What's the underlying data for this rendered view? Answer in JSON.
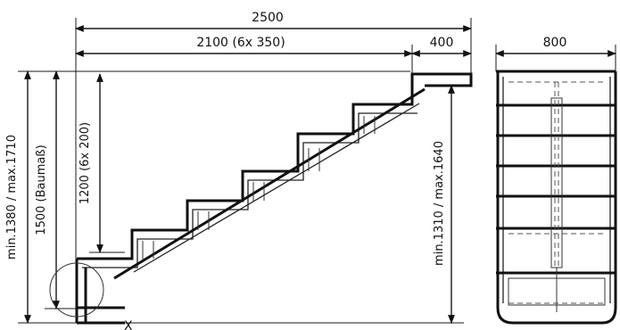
{
  "dimensions": {
    "total_width": "2500",
    "run_width": "2100 (6x 350)",
    "landing_width": "400",
    "stair_width": "800",
    "rise_height": "1200 (6x 200)",
    "ceiling_height": "1500 (Baumaß)",
    "overall_height": "min.1380 / max.1710",
    "right_height": "min.1310 / max.1640"
  },
  "markers": {
    "detail_point": "X"
  },
  "colors": {
    "line": "#111111",
    "background": "#ffffff"
  }
}
